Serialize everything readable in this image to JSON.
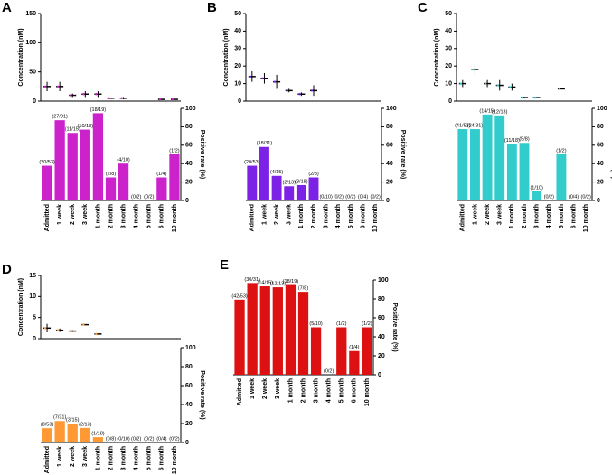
{
  "chart_data": [
    {
      "type": "errorbar",
      "panel": "A",
      "ylabel": "Concentration (nM)",
      "color": "#cc22cc",
      "ylim": [
        0,
        150
      ],
      "yticks": [
        0,
        50,
        100,
        150
      ],
      "means": [
        25,
        25,
        10,
        12,
        12,
        5,
        5,
        null,
        null,
        3,
        3
      ],
      "errors": [
        8,
        8,
        3,
        5,
        5,
        1,
        2,
        null,
        null,
        0,
        0
      ]
    },
    {
      "type": "bar",
      "ylabel": "Positive rate (%)",
      "color": "#cc22cc",
      "ylim": [
        0,
        100
      ],
      "yticks": [
        0,
        20,
        40,
        60,
        80,
        100
      ],
      "categories": [
        "Admitted",
        "1 week",
        "2 week",
        "3 week",
        "1 month",
        "2 month",
        "3 month",
        "4 month",
        "5 month",
        "6 month",
        "10 month"
      ],
      "values": [
        37.7,
        87.1,
        73.3,
        76.9,
        94.7,
        25,
        40,
        0,
        0,
        25,
        50
      ],
      "value_labels": [
        "(20/53)",
        "(27/31)",
        "(11/15)",
        "(10/13)",
        "(18/19)",
        "(2/8)",
        "(4/10)",
        "(0/2)",
        "(0/2)",
        "(1/4)",
        "(1/2)"
      ]
    },
    {
      "type": "errorbar",
      "panel": "B",
      "ylabel": "Concentration (nM)",
      "color": "#7b22e6",
      "ylim": [
        0,
        50
      ],
      "yticks": [
        0,
        10,
        20,
        30,
        40,
        50
      ],
      "means": [
        14,
        13,
        11,
        6,
        4,
        6,
        null,
        null,
        null,
        null,
        null
      ],
      "errors": [
        3,
        3,
        4,
        1,
        1,
        3,
        null,
        null,
        null,
        null,
        null
      ]
    },
    {
      "type": "bar",
      "ylabel": "Positive rate (%)",
      "color": "#7b22e6",
      "ylim": [
        0,
        100
      ],
      "yticks": [
        0,
        20,
        40,
        60,
        80,
        100
      ],
      "categories": [
        "Admitted",
        "1 week",
        "2 week",
        "3 week",
        "1 month",
        "2 month",
        "3 month",
        "4 month",
        "5 month",
        "6 month",
        "10 month"
      ],
      "values": [
        37.7,
        58.1,
        26.7,
        15.4,
        16.7,
        25,
        0,
        0,
        0,
        0,
        0
      ],
      "value_labels": [
        "(20/53)",
        "(18/31)",
        "(4/15)",
        "(2/13)",
        "(3/18)",
        "(2/8)",
        "(0/10)",
        "(0/2)",
        "(0/2)",
        "(0/4)",
        "(0/2)"
      ]
    },
    {
      "type": "errorbar",
      "panel": "C",
      "ylabel": "Concentration (nM)",
      "color": "#33cccc",
      "ylim": [
        0,
        50
      ],
      "yticks": [
        0,
        10,
        20,
        30,
        40,
        50
      ],
      "means": [
        10,
        18,
        10,
        9,
        8,
        2,
        2,
        null,
        7,
        null,
        null
      ],
      "errors": [
        2,
        3,
        2,
        3,
        2,
        0.5,
        0,
        null,
        0,
        null,
        null
      ]
    },
    {
      "type": "bar",
      "ylabel": "Positive rate (%)",
      "color": "#33cccc",
      "ylim": [
        0,
        100
      ],
      "yticks": [
        0,
        20,
        40,
        60,
        80,
        100
      ],
      "categories": [
        "Admitted",
        "1 week",
        "2 week",
        "3 week",
        "1 month",
        "2 month",
        "3 month",
        "4 month",
        "5 month",
        "6 month",
        "10 month"
      ],
      "values": [
        77.4,
        77.4,
        93.3,
        92.3,
        61.1,
        62.5,
        10,
        0,
        50,
        0,
        0
      ],
      "value_labels": [
        "(41/53)",
        "(24/31)",
        "(14/15)",
        "(12/13)",
        "(11/18)",
        "(5/8)",
        "(1/10)",
        "(0/2)",
        "(1/2)",
        "(0/4)",
        "(0/2)"
      ]
    },
    {
      "type": "errorbar",
      "panel": "D",
      "ylabel": "Concentration (nM)",
      "color": "#ff9933",
      "ylim": [
        0,
        15
      ],
      "yticks": [
        0,
        5,
        10,
        15
      ],
      "means": [
        2.5,
        2,
        1.8,
        3.3,
        1.1,
        null,
        null,
        null,
        null,
        null,
        null
      ],
      "errors": [
        1,
        0.4,
        0.2,
        0.1,
        0,
        null,
        null,
        null,
        null,
        null,
        null
      ]
    },
    {
      "type": "bar",
      "ylabel": "Positive rate (%)",
      "color": "#ff9933",
      "ylim": [
        0,
        100
      ],
      "yticks": [
        0,
        20,
        40,
        60,
        80,
        100
      ],
      "categories": [
        "Admitted",
        "1 week",
        "2 week",
        "3 week",
        "1 month",
        "2 month",
        "3 month",
        "4 month",
        "5 month",
        "6 month",
        "10 month"
      ],
      "values": [
        15.1,
        22.6,
        20,
        15.4,
        5.6,
        0,
        0,
        0,
        0,
        0,
        0
      ],
      "value_labels": [
        "(8/53)",
        "(7/31)",
        "(3/15)",
        "(2/13)",
        "(1/18)",
        "(0/8)",
        "(0/10)",
        "(0/2)",
        "(0/2)",
        "(0/4)",
        "(0/2)"
      ]
    },
    {
      "type": "bar",
      "panel": "E",
      "ylabel": "Positive rate (%)",
      "color": "#dd1111",
      "ylim": [
        0,
        100
      ],
      "yticks": [
        0,
        20,
        40,
        60,
        80,
        100
      ],
      "categories": [
        "Admitted",
        "1 week",
        "2 week",
        "3 week",
        "1 month",
        "2 month",
        "3 month",
        "4 month",
        "5 month",
        "6 month",
        "10 month"
      ],
      "values": [
        79.2,
        96.8,
        93.3,
        92.3,
        94.7,
        87.5,
        50,
        0,
        50,
        25,
        50
      ],
      "value_labels": [
        "(42/53)",
        "(30/31)",
        "(14/15)",
        "(12/13)",
        "(18/19)",
        "(7/8)",
        "(5/10)",
        "(0/2)",
        "(1/2)",
        "(1/4)",
        "(1/2)"
      ]
    }
  ]
}
